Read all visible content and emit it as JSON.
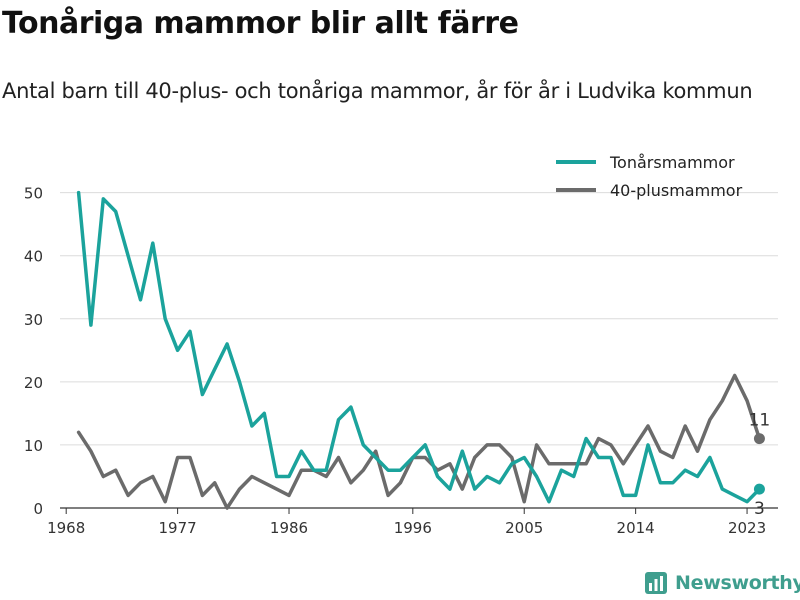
{
  "title": "Tonåriga mammor blir allt färre",
  "subtitle": "Antal barn till 40-plus- och tonåriga mammor, år för år i Ludvika kommun",
  "brand": {
    "name": "Newsworthy",
    "icon": "newsworthy-logo-icon",
    "color": "#3f9e8e"
  },
  "chart_data": {
    "type": "line",
    "x": [
      1968,
      1969,
      1970,
      1971,
      1972,
      1973,
      1974,
      1975,
      1976,
      1977,
      1978,
      1979,
      1980,
      1981,
      1982,
      1983,
      1984,
      1985,
      1986,
      1987,
      1988,
      1989,
      1990,
      1991,
      1992,
      1993,
      1994,
      1995,
      1996,
      1997,
      1998,
      1999,
      2000,
      2001,
      2002,
      2003,
      2004,
      2005,
      2006,
      2007,
      2008,
      2009,
      2010,
      2011,
      2012,
      2013,
      2014,
      2015,
      2016,
      2017,
      2018,
      2019,
      2020,
      2021,
      2022,
      2023,
      2024
    ],
    "xticks": [
      1968,
      1977,
      1986,
      1996,
      2005,
      2014,
      2023
    ],
    "xlim": [
      1967.5,
      2025.5
    ],
    "yticks": [
      0,
      10,
      20,
      30,
      40,
      50
    ],
    "ylim": [
      0,
      52
    ],
    "grid": true,
    "legend_position": "top-right",
    "series": [
      {
        "name": "Tonårsmammor",
        "color": "#1ba39c",
        "end_label": "3",
        "values": [
          null,
          50,
          29,
          49,
          47,
          40,
          33,
          42,
          30,
          25,
          28,
          18,
          22,
          26,
          20,
          13,
          15,
          5,
          5,
          9,
          6,
          6,
          14,
          16,
          10,
          8,
          6,
          6,
          8,
          10,
          5,
          3,
          9,
          3,
          5,
          4,
          7,
          8,
          5,
          1,
          6,
          5,
          11,
          8,
          8,
          2,
          2,
          10,
          4,
          4,
          6,
          5,
          8,
          3,
          2,
          1,
          3
        ]
      },
      {
        "name": "40-plusmammor",
        "color": "#6b6b6b",
        "end_label": "11",
        "values": [
          null,
          12,
          9,
          5,
          6,
          2,
          4,
          5,
          1,
          8,
          8,
          2,
          4,
          0,
          3,
          5,
          4,
          3,
          2,
          6,
          6,
          5,
          8,
          4,
          6,
          9,
          2,
          4,
          8,
          8,
          6,
          7,
          3,
          8,
          10,
          10,
          8,
          1,
          10,
          7,
          7,
          7,
          7,
          11,
          10,
          7,
          10,
          13,
          9,
          8,
          13,
          9,
          14,
          17,
          21,
          17,
          11
        ]
      }
    ]
  }
}
